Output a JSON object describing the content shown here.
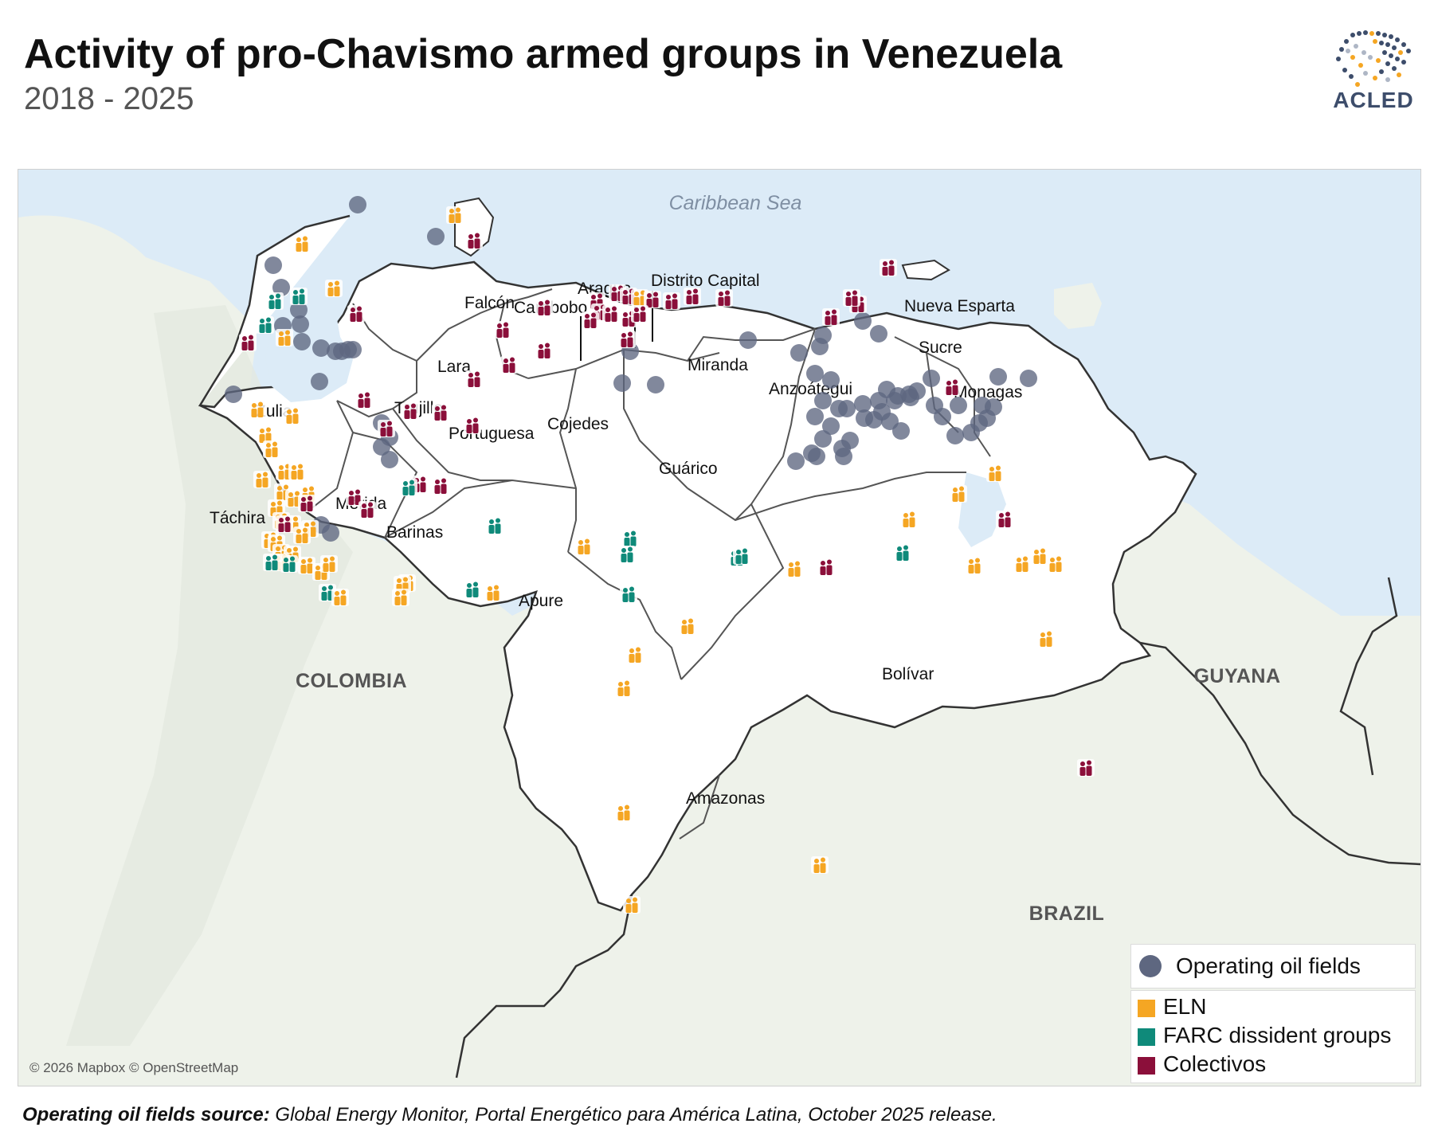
{
  "header": {
    "title": "Activity of pro-Chavismo armed groups in Venezuela",
    "subtitle": "2018 - 2025",
    "logo_text": "ACLED"
  },
  "map": {
    "sea_label": "Caribbean Sea",
    "countries": {
      "colombia": "COLOMBIA",
      "guyana": "GUYANA",
      "brazil": "BRAZIL"
    },
    "states": {
      "falcon": "Falcón",
      "aragua": "Aragua",
      "distrito_capital": "Distrito Capital",
      "carabobo": "Carabobo",
      "nueva_esparta": "Nueva Esparta",
      "lara": "Lara",
      "sucre": "Sucre",
      "miranda": "Miranda",
      "zulia": "Zulia",
      "anzoategui": "Anzoátegui",
      "monagas": "Monagas",
      "trujillo": "Trujillo",
      "cojedes": "Cojedes",
      "portuguesa": "Portuguesa",
      "guarico": "Guárico",
      "merida": "Mérida",
      "tachira": "Táchira",
      "barinas": "Barinas",
      "apure": "Apure",
      "bolivar": "Bolívar",
      "amazonas": "Amazonas"
    },
    "attribution": "© 2026 Mapbox © OpenStreetMap",
    "colors": {
      "sea": "#dcebf7",
      "land_neighbors": "#eef2ea",
      "venezuela": "#ffffff",
      "oil_field": "#5e6780",
      "eln": "#f5a623",
      "farc": "#0f8a7a",
      "colectivos": "#8b0f3a"
    }
  },
  "legend": {
    "oil_fields_label": "Operating oil fields",
    "groups": [
      {
        "label": "ELN",
        "color": "#f5a623"
      },
      {
        "label": "FARC dissident groups",
        "color": "#0f8a7a"
      },
      {
        "label": "Colectivos",
        "color": "#8b0f3a"
      }
    ]
  },
  "footer": {
    "source_prefix": "Operating oil fields source:",
    "source_text": " Global Energy Monitor, Portal Energético para América Latina, October 2025 release."
  }
}
